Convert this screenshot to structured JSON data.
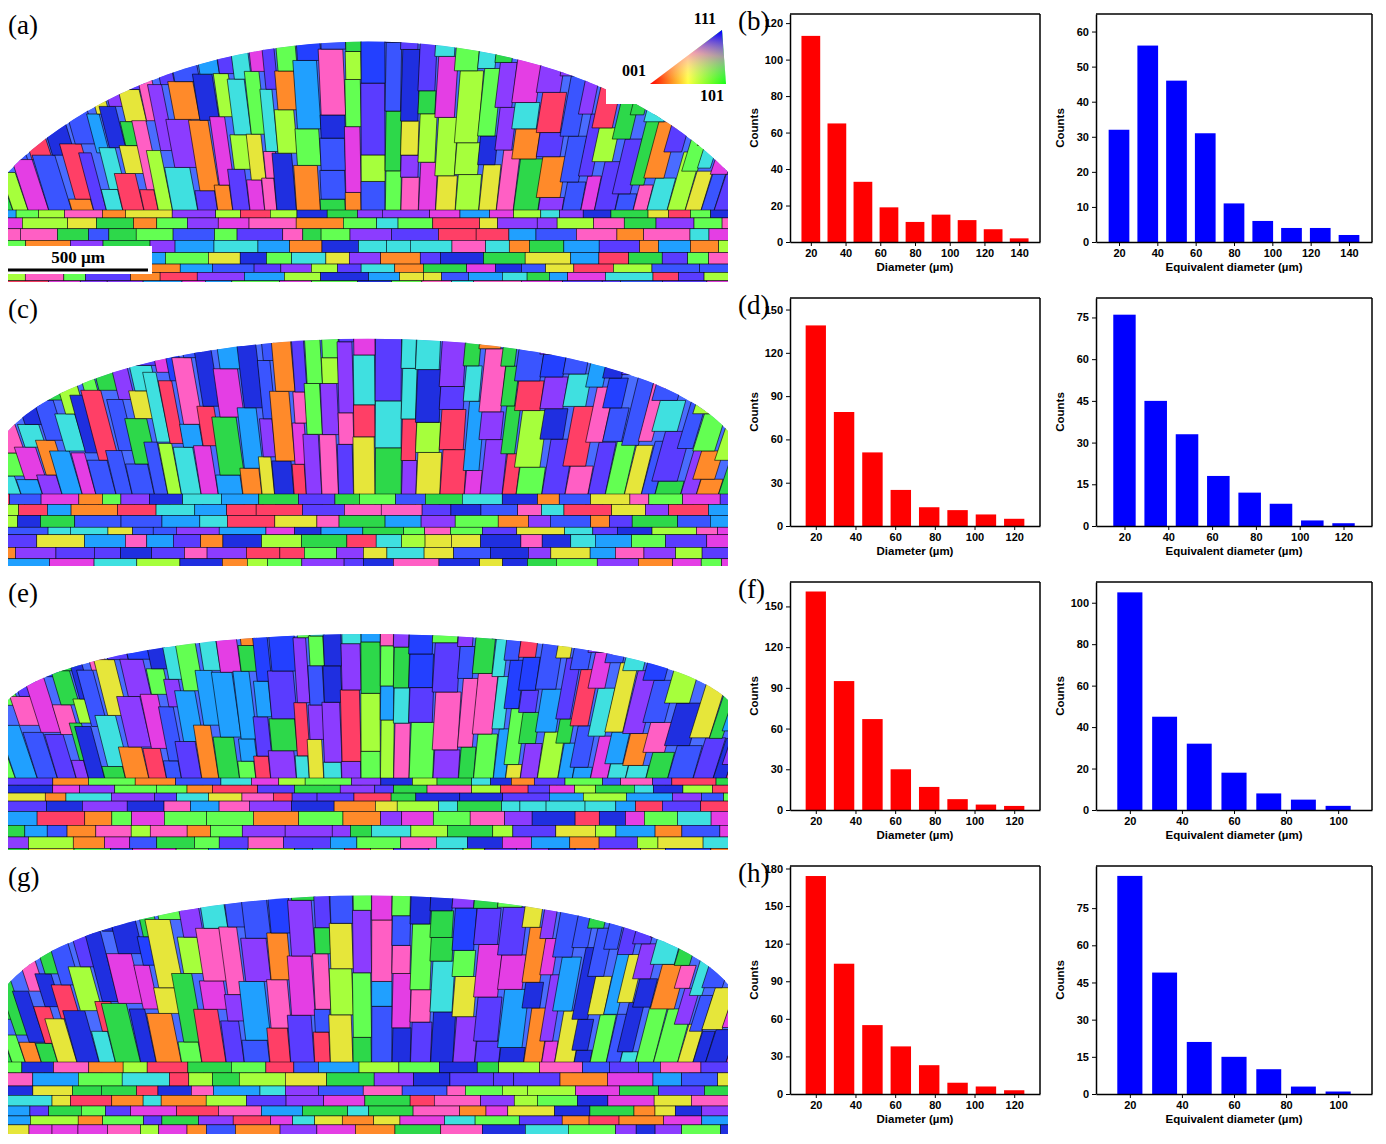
{
  "figure": {
    "map_labels": [
      "(a)",
      "(c)",
      "(e)",
      "(g)"
    ],
    "hist_labels": [
      "(b)",
      "(d)",
      "(f)",
      "(h)"
    ],
    "scale_bar": "500 µm",
    "ipf_labels": {
      "top": "111",
      "left": "001",
      "bottom": "101"
    }
  },
  "chart_data": [
    {
      "type": "histogram",
      "xlabel": "Diameter (µm)",
      "ylabel": "Counts",
      "color": "#ff0000",
      "bins": [
        12.5,
        27.5,
        42.5,
        57.5,
        72.5,
        87.5,
        102.5,
        117.5,
        132.5,
        147.5
      ],
      "counts": [
        113,
        65,
        33,
        19,
        11,
        15,
        12,
        7,
        2
      ],
      "xlim": [
        8,
        152
      ],
      "xticks": [
        20,
        40,
        60,
        80,
        100,
        120,
        140
      ],
      "ylim": [
        0,
        125
      ],
      "yticks": [
        0,
        20,
        40,
        60,
        80,
        100,
        120
      ]
    },
    {
      "type": "histogram",
      "xlabel": "Equivalent diameter (µm)",
      "ylabel": "Counts",
      "color": "#0000ff",
      "bins": [
        12.5,
        27.5,
        42.5,
        57.5,
        72.5,
        87.5,
        102.5,
        117.5,
        132.5,
        147.5
      ],
      "counts": [
        32,
        56,
        46,
        31,
        11,
        6,
        4,
        4,
        2
      ],
      "xlim": [
        8,
        152
      ],
      "xticks": [
        20,
        40,
        60,
        80,
        100,
        120,
        140
      ],
      "ylim": [
        0,
        65
      ],
      "yticks": [
        0,
        10,
        20,
        30,
        40,
        50,
        60
      ]
    },
    {
      "type": "histogram",
      "xlabel": "Diameter (µm)",
      "ylabel": "Counts",
      "color": "#ff0000",
      "bins": [
        12.9,
        27.1,
        41.4,
        55.7,
        70,
        84.3,
        98.6,
        112.9,
        127.1
      ],
      "counts": [
        139,
        79,
        51,
        25,
        13,
        11,
        8,
        5
      ],
      "xlim": [
        7,
        133
      ],
      "xticks": [
        20,
        40,
        60,
        80,
        100,
        120
      ],
      "ylim": [
        0,
        158
      ],
      "yticks": [
        0,
        30,
        60,
        90,
        120,
        150
      ]
    },
    {
      "type": "histogram",
      "xlabel": "Equivalent diameter (µm)",
      "ylabel": "Counts",
      "color": "#0000ff",
      "bins": [
        12.9,
        27.1,
        41.4,
        55.7,
        70,
        84.3,
        98.6,
        112.9,
        127.1
      ],
      "counts": [
        76,
        45,
        33,
        18,
        12,
        8,
        2,
        1
      ],
      "xlim": [
        7,
        133
      ],
      "xticks": [
        20,
        40,
        60,
        80,
        100,
        120
      ],
      "ylim": [
        0,
        82
      ],
      "yticks": [
        0,
        15,
        30,
        45,
        60,
        75
      ]
    },
    {
      "type": "histogram",
      "xlabel": "Diameter (µm)",
      "ylabel": "Counts",
      "color": "#ff0000",
      "bins": [
        12.9,
        27.1,
        41.4,
        55.7,
        70,
        84.3,
        98.6,
        112.9,
        127.1
      ],
      "counts": [
        161,
        95,
        67,
        30,
        17,
        8,
        4,
        3
      ],
      "xlim": [
        7,
        133
      ],
      "xticks": [
        20,
        40,
        60,
        80,
        100,
        120
      ],
      "ylim": [
        0,
        168
      ],
      "yticks": [
        0,
        30,
        60,
        90,
        120,
        150
      ]
    },
    {
      "type": "histogram",
      "xlabel": "Equivalent diameter (µm)",
      "ylabel": "Counts",
      "color": "#0000ff",
      "bins": [
        13.3,
        26.7,
        40,
        53.3,
        66.7,
        80,
        93.3,
        106.7
      ],
      "counts": [
        105,
        45,
        32,
        18,
        8,
        5,
        2
      ],
      "xlim": [
        7,
        113
      ],
      "xticks": [
        20,
        40,
        60,
        80,
        100
      ],
      "ylim": [
        0,
        110
      ],
      "yticks": [
        0,
        20,
        40,
        60,
        80,
        100
      ]
    },
    {
      "type": "histogram",
      "xlabel": "Diameter (µm)",
      "ylabel": "Counts",
      "color": "#ff0000",
      "bins": [
        12.9,
        27.1,
        41.4,
        55.7,
        70,
        84.3,
        98.6,
        112.9,
        127.1
      ],
      "counts": [
        174,
        104,
        55,
        38,
        23,
        9,
        6,
        3
      ],
      "xlim": [
        7,
        133
      ],
      "xticks": [
        20,
        40,
        60,
        80,
        100,
        120
      ],
      "ylim": [
        0,
        182
      ],
      "yticks": [
        0,
        30,
        60,
        90,
        120,
        150,
        180
      ]
    },
    {
      "type": "histogram",
      "xlabel": "Equivalent diameter (µm)",
      "ylabel": "Counts",
      "color": "#0000ff",
      "bins": [
        13.3,
        26.7,
        40,
        53.3,
        66.7,
        80,
        93.3,
        106.7
      ],
      "counts": [
        88,
        49,
        21,
        15,
        10,
        3,
        1
      ],
      "xlim": [
        7,
        113
      ],
      "xticks": [
        20,
        40,
        60,
        80,
        100
      ],
      "ylim": [
        0,
        92
      ],
      "yticks": [
        0,
        15,
        30,
        45,
        60,
        75
      ]
    }
  ]
}
